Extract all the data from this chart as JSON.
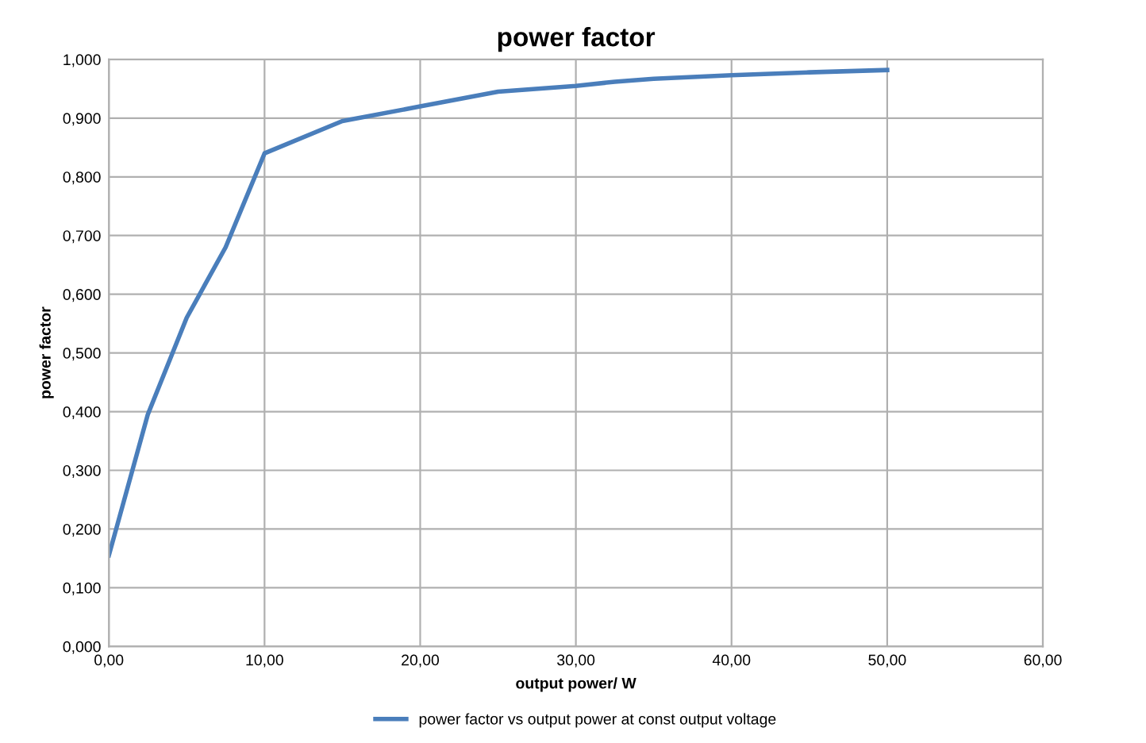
{
  "chart_data": {
    "type": "line",
    "title": "power factor",
    "xlabel": "output power/ W",
    "ylabel": "power factor",
    "xlim": [
      0,
      60
    ],
    "ylim": [
      0,
      1
    ],
    "xticks": [
      {
        "value": 0,
        "label": "0,00"
      },
      {
        "value": 10,
        "label": "10,00"
      },
      {
        "value": 20,
        "label": "20,00"
      },
      {
        "value": 30,
        "label": "30,00"
      },
      {
        "value": 40,
        "label": "40,00"
      },
      {
        "value": 50,
        "label": "50,00"
      },
      {
        "value": 60,
        "label": "60,00"
      }
    ],
    "yticks": [
      {
        "value": 0,
        "label": "0,000"
      },
      {
        "value": 0.1,
        "label": "0,100"
      },
      {
        "value": 0.2,
        "label": "0,200"
      },
      {
        "value": 0.3,
        "label": "0,300"
      },
      {
        "value": 0.4,
        "label": "0,400"
      },
      {
        "value": 0.5,
        "label": "0,500"
      },
      {
        "value": 0.6,
        "label": "0,600"
      },
      {
        "value": 0.7,
        "label": "0,700"
      },
      {
        "value": 0.8,
        "label": "0,800"
      },
      {
        "value": 0.9,
        "label": "0,900"
      },
      {
        "value": 1,
        "label": "1,000"
      }
    ],
    "grid": true,
    "legend": "bottom",
    "marker": "none",
    "line_style": "solid",
    "x": [
      0,
      2.5,
      5,
      7.5,
      10,
      15,
      20,
      25,
      30,
      32.5,
      35,
      40,
      45,
      50
    ],
    "series": [
      {
        "name": "power factor vs output power at const output voltage",
        "color": "#4a7ebb",
        "values": [
          0.155,
          0.395,
          0.56,
          0.68,
          0.84,
          0.895,
          0.92,
          0.945,
          0.955,
          0.962,
          0.967,
          0.973,
          0.978,
          0.982
        ]
      }
    ]
  }
}
